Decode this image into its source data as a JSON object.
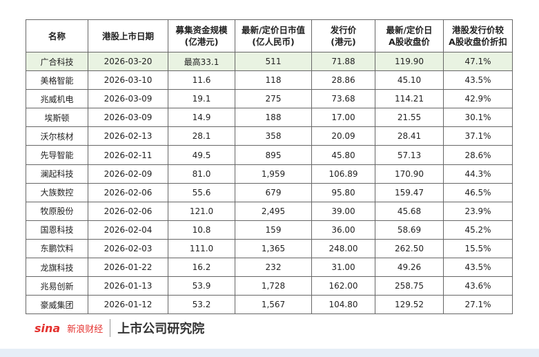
{
  "table": {
    "header": [
      "名称",
      "港股上市日期",
      "募集资金规模\n(亿港元)",
      "最新/定价日市值\n(亿人民币)",
      "发行价\n(港元)",
      "最新/定价日\nA股收盘价",
      "港股发行价较\nA股收盘价折扣"
    ],
    "rows": [
      [
        "广合科技",
        "2026-03-20",
        "最高33.1",
        "511",
        "71.88",
        "119.90",
        "47.1%"
      ],
      [
        "美格智能",
        "2026-03-10",
        "11.6",
        "118",
        "28.86",
        "45.10",
        "43.5%"
      ],
      [
        "兆威机电",
        "2026-03-09",
        "19.1",
        "275",
        "73.68",
        "114.21",
        "42.9%"
      ],
      [
        "埃斯顿",
        "2026-03-09",
        "14.9",
        "188",
        "17.00",
        "21.55",
        "30.1%"
      ],
      [
        "沃尔核材",
        "2026-02-13",
        "28.1",
        "358",
        "20.09",
        "28.41",
        "37.1%"
      ],
      [
        "先导智能",
        "2026-02-11",
        "49.5",
        "895",
        "45.80",
        "57.13",
        "28.6%"
      ],
      [
        "澜起科技",
        "2026-02-09",
        "81.0",
        "1,959",
        "106.89",
        "170.90",
        "44.3%"
      ],
      [
        "大族数控",
        "2026-02-06",
        "55.6",
        "679",
        "95.80",
        "159.47",
        "46.5%"
      ],
      [
        "牧原股份",
        "2026-02-06",
        "121.0",
        "2,495",
        "39.00",
        "45.68",
        "23.9%"
      ],
      [
        "国恩科技",
        "2026-02-04",
        "10.8",
        "159",
        "36.00",
        "58.69",
        "45.2%"
      ],
      [
        "东鹏饮料",
        "2026-02-03",
        "111.0",
        "1,365",
        "248.00",
        "262.50",
        "15.5%"
      ],
      [
        "龙旗科技",
        "2026-01-22",
        "16.2",
        "232",
        "31.00",
        "49.26",
        "43.5%"
      ],
      [
        "兆易创新",
        "2026-01-13",
        "53.9",
        "1,728",
        "162.00",
        "258.75",
        "43.6%"
      ],
      [
        "豪威集团",
        "2026-01-12",
        "53.2",
        "1,567",
        "104.80",
        "129.52",
        "27.1%"
      ]
    ]
  },
  "footer": {
    "brand": "新浪财经",
    "brand_logo": "sina",
    "institute": "上市公司研究院"
  }
}
